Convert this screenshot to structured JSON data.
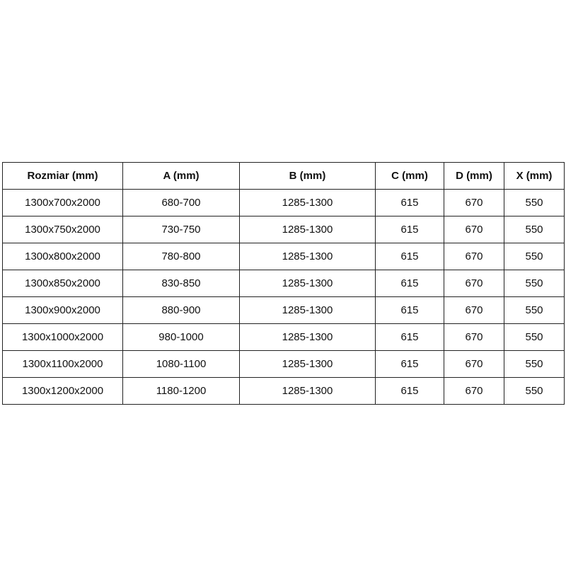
{
  "table": {
    "headers": [
      "Rozmiar (mm)",
      "A (mm)",
      "B (mm)",
      "C (mm)",
      "D (mm)",
      "X (mm)"
    ],
    "rows": [
      [
        "1300x700x2000",
        "680-700",
        "1285-1300",
        "615",
        "670",
        "550"
      ],
      [
        "1300x750x2000",
        "730-750",
        "1285-1300",
        "615",
        "670",
        "550"
      ],
      [
        "1300x800x2000",
        "780-800",
        "1285-1300",
        "615",
        "670",
        "550"
      ],
      [
        "1300x850x2000",
        "830-850",
        "1285-1300",
        "615",
        "670",
        "550"
      ],
      [
        "1300x900x2000",
        "880-900",
        "1285-1300",
        "615",
        "670",
        "550"
      ],
      [
        "1300x1000x2000",
        "980-1000",
        "1285-1300",
        "615",
        "670",
        "550"
      ],
      [
        "1300x1100x2000",
        "1080-1100",
        "1285-1300",
        "615",
        "670",
        "550"
      ],
      [
        "1300x1200x2000",
        "1180-1200",
        "1285-1300",
        "615",
        "670",
        "550"
      ]
    ]
  }
}
